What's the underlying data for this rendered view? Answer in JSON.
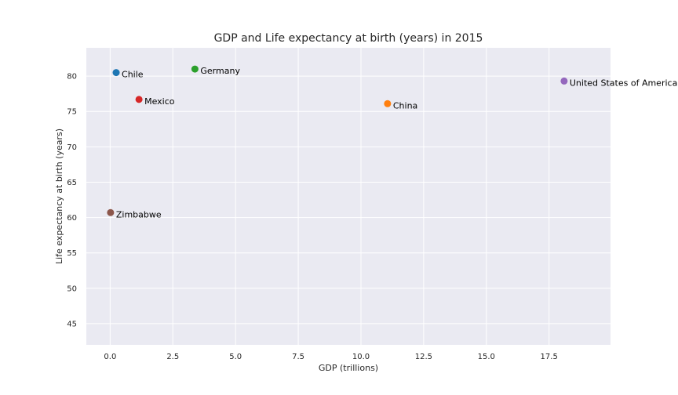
{
  "chart_data": {
    "type": "scatter",
    "title": "GDP and Life expectancy at birth (years) in 2015",
    "xlabel": "GDP (trillions)",
    "ylabel": "Life expectancy at birth (years)",
    "xlim": [
      -0.95,
      19.95
    ],
    "ylim": [
      42.0,
      84.0
    ],
    "xticks": [
      0.0,
      2.5,
      5.0,
      7.5,
      10.0,
      12.5,
      15.0,
      17.5
    ],
    "xtick_labels": [
      "0.0",
      "2.5",
      "5.0",
      "7.5",
      "10.0",
      "12.5",
      "15.0",
      "17.5"
    ],
    "yticks": [
      45,
      50,
      55,
      60,
      65,
      70,
      75,
      80
    ],
    "ytick_labels": [
      "45",
      "50",
      "55",
      "60",
      "65",
      "70",
      "75",
      "80"
    ],
    "grid": true,
    "background": "#eaeaf2",
    "points": [
      {
        "label": "Chile",
        "x": 0.24,
        "y": 80.5,
        "color": "#1f77b4"
      },
      {
        "label": "China",
        "x": 11.06,
        "y": 76.1,
        "color": "#ff7f0e"
      },
      {
        "label": "Germany",
        "x": 3.38,
        "y": 81.0,
        "color": "#2ca02c"
      },
      {
        "label": "Mexico",
        "x": 1.15,
        "y": 76.7,
        "color": "#d62728"
      },
      {
        "label": "United States of America",
        "x": 18.1,
        "y": 79.3,
        "color": "#9467bd"
      },
      {
        "label": "Zimbabwe",
        "x": 0.016,
        "y": 60.7,
        "color": "#8c564b"
      }
    ]
  }
}
